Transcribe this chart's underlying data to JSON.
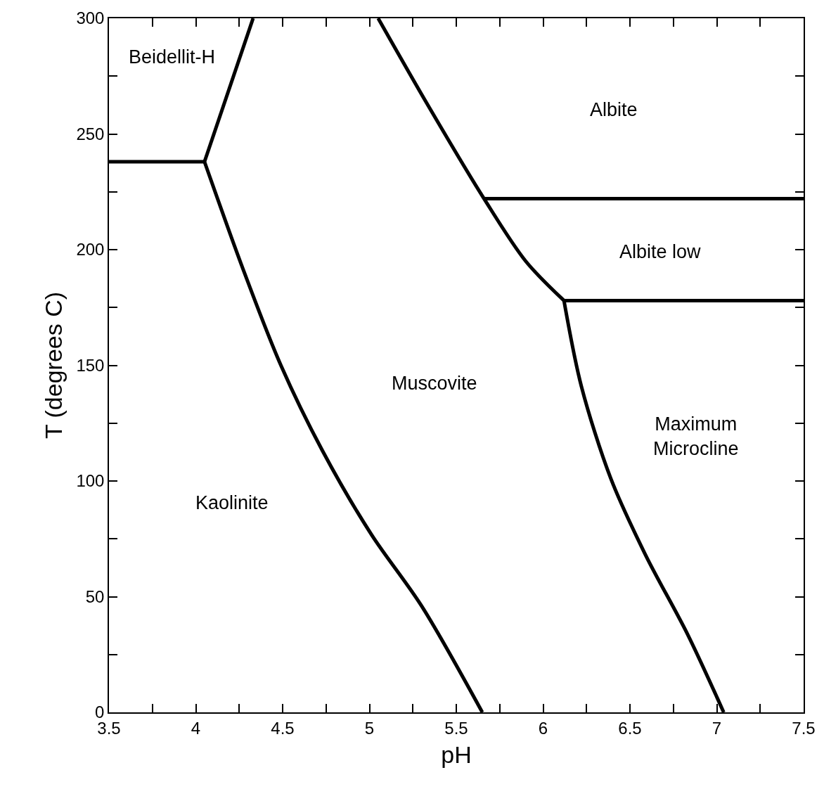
{
  "chart_data": {
    "type": "line",
    "xlabel": "pH",
    "ylabel": "T (degrees C)",
    "series": [
      {
        "color": "#000000",
        "x": [
          3.5,
          4.05
        ],
        "values": [
          238,
          238
        ]
      },
      {
        "color": "#000000",
        "x": [
          4.05,
          4.33
        ],
        "values": [
          238,
          300
        ]
      },
      {
        "color": "#000000",
        "x": [
          4.05,
          4.27,
          4.49,
          4.73,
          5.01,
          5.3,
          5.65
        ],
        "values": [
          238,
          192,
          150,
          113,
          77,
          46,
          0
        ]
      },
      {
        "color": "#000000",
        "x": [
          5.05,
          5.34,
          5.66,
          5.9,
          6.12
        ],
        "values": [
          300,
          262,
          222,
          195,
          178
        ]
      },
      {
        "color": "#000000",
        "x": [
          5.66,
          7.5
        ],
        "values": [
          222,
          222
        ]
      },
      {
        "color": "#000000",
        "x": [
          6.12,
          7.5
        ],
        "values": [
          178,
          178
        ]
      },
      {
        "color": "#000000",
        "x": [
          6.12,
          6.22,
          6.39,
          6.59,
          6.83,
          7.04
        ],
        "values": [
          178,
          141,
          101,
          68,
          34,
          0
        ]
      }
    ],
    "annotations": [
      "Beidellit-H",
      "Albite",
      "Albite low",
      "Muscovite",
      "Maximum\nMicrocline",
      "Kaolinite"
    ],
    "xlim": [
      3.5,
      7.5
    ],
    "xticks": [
      3.5,
      {
        "value": 3.75,
        "label": null
      },
      4,
      {
        "value": 4.25,
        "label": null
      },
      4.5,
      {
        "value": 4.75,
        "label": null
      },
      5,
      {
        "value": 5.25,
        "label": null
      },
      5.5,
      {
        "value": 5.75,
        "label": null
      },
      6,
      {
        "value": 6.25,
        "label": null
      },
      6.5,
      {
        "value": 6.75,
        "label": null
      },
      7,
      {
        "value": 7.25,
        "label": null
      },
      7.5
    ],
    "ylim": [
      0,
      300
    ],
    "yticks": [
      0,
      {
        "value": 25,
        "label": null
      },
      50,
      {
        "value": 75,
        "label": null
      },
      100,
      {
        "value": 125,
        "label": null
      },
      150,
      {
        "value": 175,
        "label": null
      },
      200,
      {
        "value": 225,
        "label": null
      },
      250,
      {
        "value": 275,
        "label": null
      },
      300
    ],
    "marker": "none",
    "line_style": "solid"
  }
}
